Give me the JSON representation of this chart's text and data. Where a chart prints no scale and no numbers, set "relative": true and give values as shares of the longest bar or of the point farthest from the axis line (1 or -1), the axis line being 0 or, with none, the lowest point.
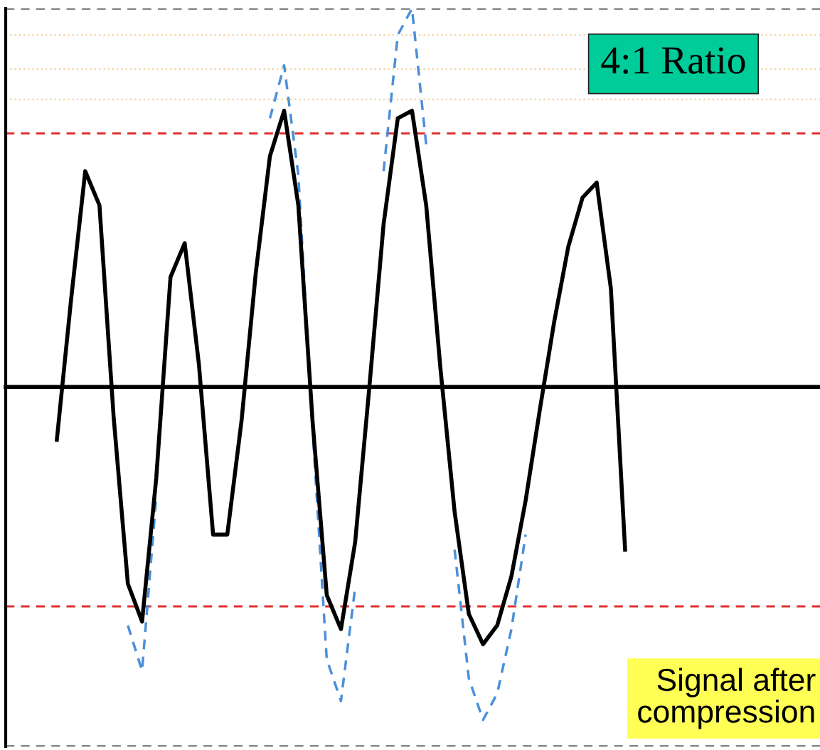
{
  "chart_data": {
    "type": "line",
    "relative": true,
    "categories": [
      null,
      null,
      null,
      null,
      null,
      null,
      null,
      null,
      null,
      null,
      null,
      null,
      null,
      null,
      null,
      null,
      null,
      null,
      null,
      null,
      null,
      null,
      null,
      null,
      null,
      null,
      null,
      null,
      null,
      null,
      null,
      null,
      null,
      null,
      null,
      null,
      null,
      null,
      null,
      null,
      null
    ],
    "series": [
      {
        "color": "#4a90d9",
        "line_style": "dashed",
        "values": [
          null,
          null,
          null,
          null,
          null,
          -0.63,
          -0.75,
          -0.29,
          null,
          null,
          null,
          null,
          null,
          null,
          null,
          0.71,
          0.85,
          0.56,
          -0.11,
          -0.72,
          -0.83,
          -0.53,
          null,
          0.57,
          0.93,
          1.0,
          0.64,
          null,
          -0.43,
          -0.77,
          -0.88,
          -0.81,
          -0.64,
          -0.39,
          null,
          null,
          null,
          null,
          null,
          null,
          null
        ]
      },
      {
        "color": "#000000",
        "line_style": "solid",
        "values": [
          -0.14,
          0.23,
          0.57,
          0.48,
          -0.08,
          -0.52,
          -0.62,
          -0.24,
          0.29,
          0.38,
          0.06,
          -0.39,
          -0.39,
          -0.09,
          0.3,
          0.61,
          0.73,
          0.48,
          -0.09,
          -0.55,
          -0.64,
          -0.41,
          0,
          0.43,
          0.71,
          0.73,
          0.48,
          0.05,
          -0.33,
          -0.6,
          -0.68,
          -0.63,
          -0.5,
          -0.3,
          -0.06,
          0.17,
          0.37,
          0.5,
          0.54,
          0.26,
          -0.43
        ]
      }
    ],
    "ref_lines": [
      {
        "axis": "y",
        "value": 1.0,
        "color": "#333333",
        "line_style": "dashed"
      },
      {
        "axis": "y",
        "value": 0.93,
        "color": "#f0c890",
        "line_style": "dotted"
      },
      {
        "axis": "y",
        "value": 0.84,
        "color": "#f0c890",
        "line_style": "dotted"
      },
      {
        "axis": "y",
        "value": 0.76,
        "color": "#f0c890",
        "line_style": "dotted"
      },
      {
        "axis": "y",
        "value": 0.67,
        "color": "#e03030",
        "line_style": "dashed"
      },
      {
        "axis": "y",
        "value": -0.58,
        "color": "#e03030",
        "line_style": "dashed"
      },
      {
        "axis": "y",
        "value": -0.95,
        "color": "#333333",
        "line_style": "dashed"
      }
    ],
    "annotations": [
      "4:1 Ratio",
      "Signal after\ncompression"
    ],
    "marker": "none"
  }
}
